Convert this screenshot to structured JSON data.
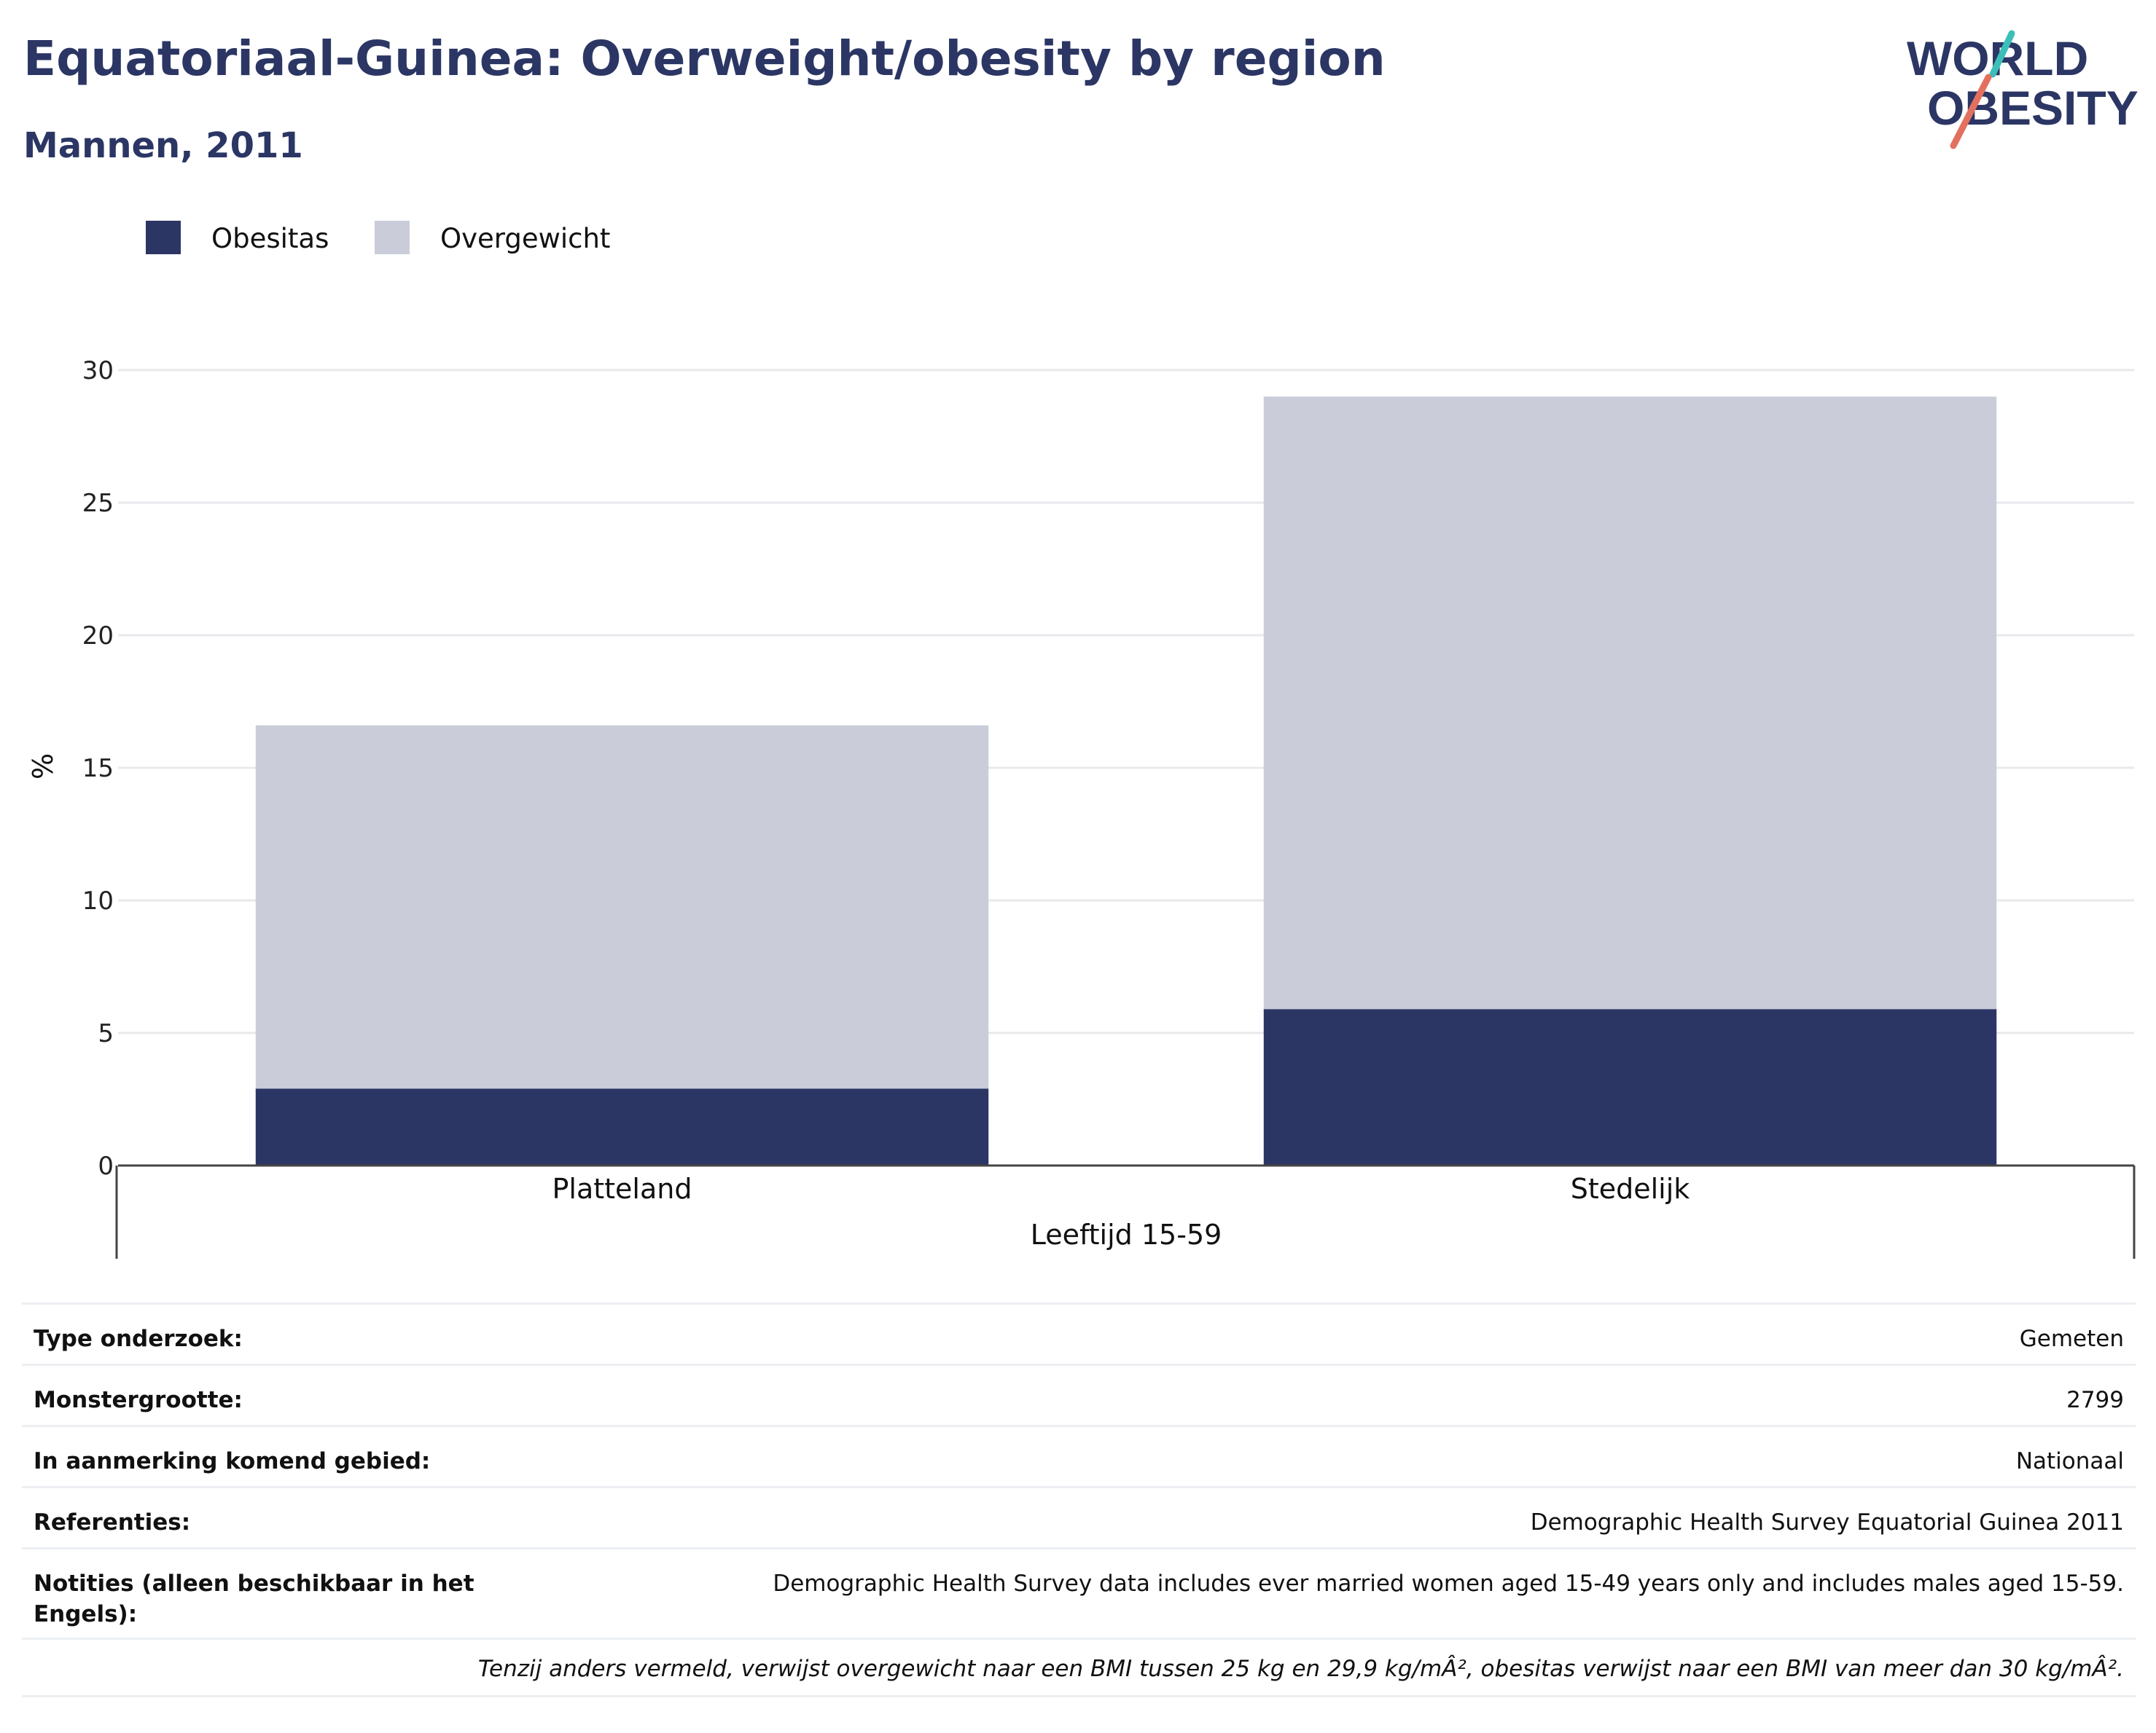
{
  "header": {
    "title": "Equatoriaal-Guinea: Overweight/obesity by region",
    "subtitle": "Mannen, 2011",
    "logo_line1": "WORLD",
    "logo_line2": "OBESITY"
  },
  "colors": {
    "obesity": "#2b3664",
    "overweight": "#cacdd9",
    "grid": "#e8e9ec",
    "axis": "#444444"
  },
  "chart_data": {
    "type": "bar",
    "stacked": true,
    "categories": [
      "Platteland",
      "Stedelijk"
    ],
    "group_label": "Leeftijd 15-59",
    "series": [
      {
        "name": "Obesitas",
        "values": [
          2.9,
          5.9
        ]
      },
      {
        "name": "Overgewicht",
        "values": [
          13.7,
          23.1
        ]
      }
    ],
    "ylabel": "%",
    "ylim": [
      0,
      30
    ],
    "yticks": [
      0,
      5,
      10,
      15,
      20,
      25,
      30
    ],
    "grid": true,
    "legend_position": "top-left"
  },
  "meta": [
    {
      "key": "Type onderzoek:",
      "value": "Gemeten"
    },
    {
      "key": "Monstergrootte:",
      "value": "2799"
    },
    {
      "key": "In aanmerking komend gebied:",
      "value": "Nationaal"
    },
    {
      "key": "Referenties:",
      "value": "Demographic Health Survey Equatorial Guinea 2011"
    },
    {
      "key": "Notities (alleen beschikbaar in het Engels):",
      "value": "Demographic Health Survey data includes ever married women aged 15-49 years only and includes males aged 15-59."
    }
  ],
  "footnote": "Tenzij anders vermeld, verwijst overgewicht naar een BMI tussen 25 kg en 29,9 kg/mÂ², obesitas verwijst naar een BMI van meer dan 30 kg/mÂ²."
}
